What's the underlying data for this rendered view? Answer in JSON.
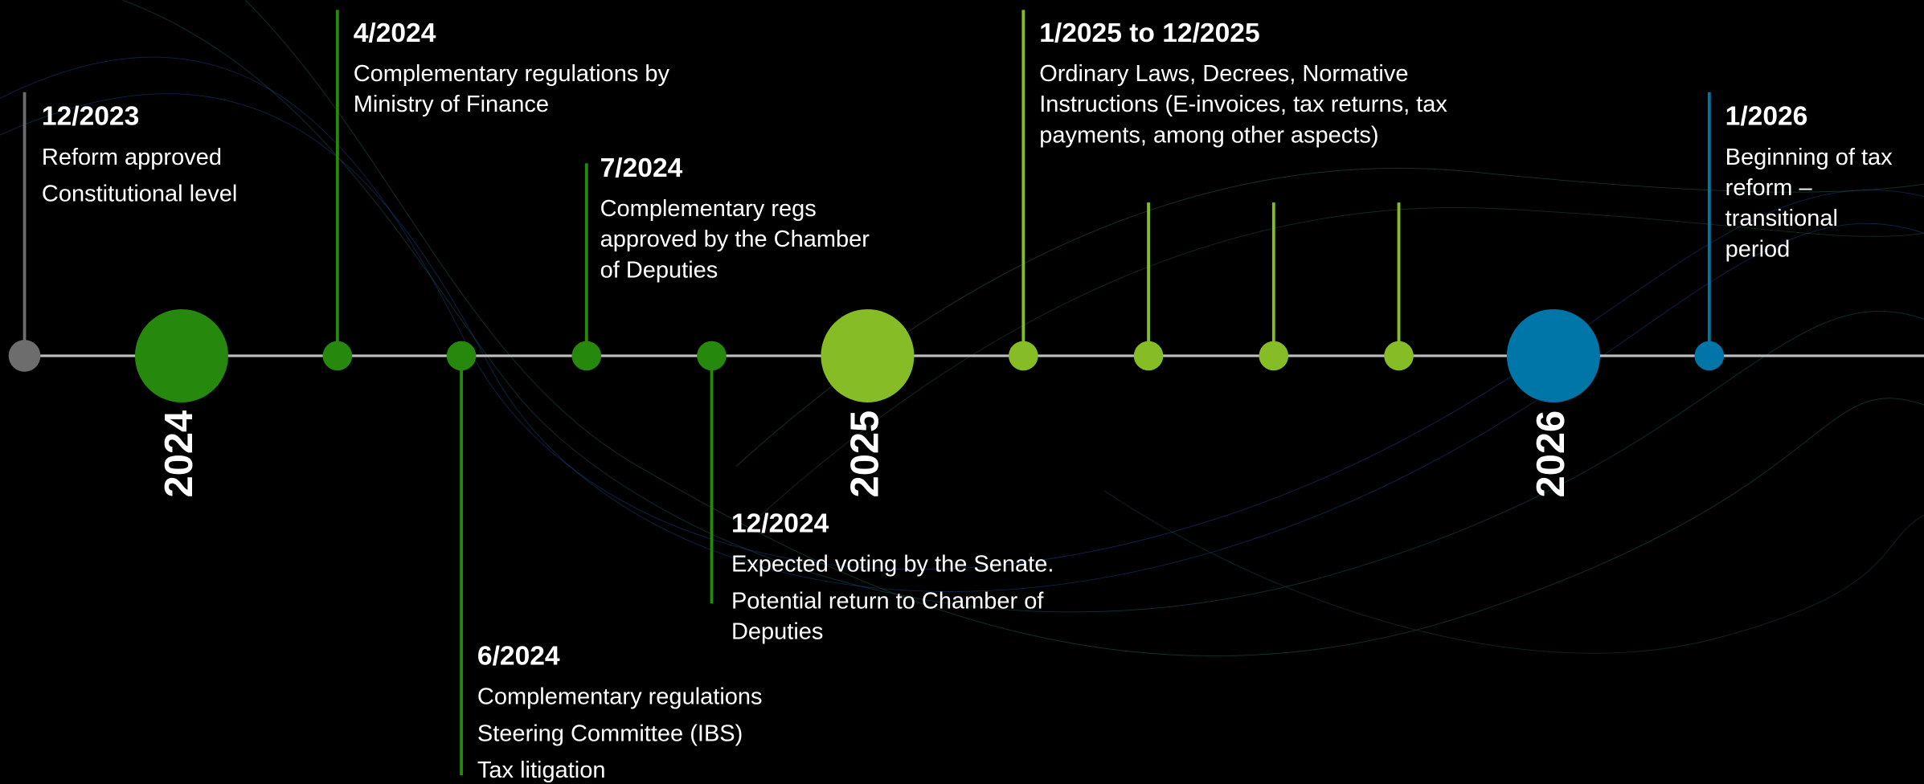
{
  "years": [
    "2024",
    "2025",
    "2026"
  ],
  "events": [
    {
      "date": "12/2023",
      "items": [
        [
          "Reform approved"
        ],
        [
          "Constitutional level"
        ]
      ]
    },
    {
      "date": "4/2024",
      "items": [
        [
          "Complementary regulations by",
          "Ministry of Finance"
        ]
      ]
    },
    {
      "date": "6/2024",
      "items": [
        [
          "Complementary regulations"
        ],
        [
          "Steering Committee (IBS)"
        ],
        [
          "Tax litigation"
        ]
      ]
    },
    {
      "date": "7/2024",
      "items": [
        [
          "Complementary regs",
          "approved by the Chamber",
          "of Deputies"
        ]
      ]
    },
    {
      "date": "12/2024",
      "items": [
        [
          "Expected voting by the Senate."
        ],
        [
          "Potential return to Chamber of",
          "Deputies"
        ]
      ]
    },
    {
      "date": "1/2025 to 12/2025",
      "items": [
        [
          "Ordinary Laws, Decrees, Normative",
          "Instructions (E-invoices, tax returns, tax",
          "payments, among other aspects)"
        ]
      ]
    },
    {
      "date": "1/2026",
      "items": [
        [
          "Beginning of tax",
          "reform –",
          "transitional",
          "period"
        ]
      ]
    }
  ]
}
